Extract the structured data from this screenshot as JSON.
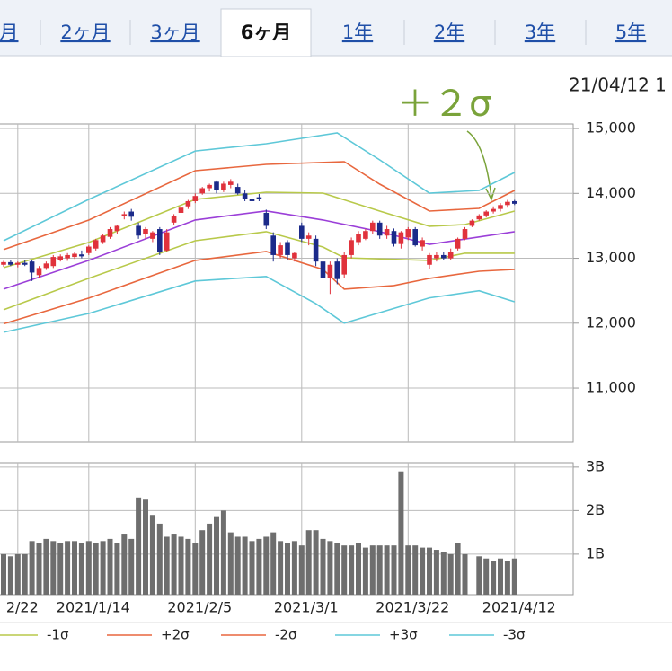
{
  "tabs": [
    {
      "label": "月",
      "selected": false
    },
    {
      "label": "2ヶ月",
      "selected": false
    },
    {
      "label": "3ヶ月",
      "selected": false
    },
    {
      "label": "6ヶ月",
      "selected": true
    },
    {
      "label": "1年",
      "selected": false
    },
    {
      "label": "2年",
      "selected": false
    },
    {
      "label": "3年",
      "selected": false
    },
    {
      "label": "5年",
      "selected": false
    }
  ],
  "chart_data": [
    {
      "type": "candlestick",
      "date_label": "21/04/12 1",
      "annotation": "＋２σ",
      "annotation_color": "#7aa33a",
      "up_color": "#e0323c",
      "down_color": "#1b2a8a",
      "categories": [
        null,
        null,
        "2/22",
        null,
        null,
        null,
        null,
        null,
        null,
        null,
        null,
        null,
        "2021/1/14",
        null,
        null,
        null,
        null,
        null,
        null,
        null,
        null,
        null,
        null,
        null,
        null,
        null,
        null,
        "2021/2/5",
        null,
        null,
        null,
        null,
        null,
        null,
        null,
        null,
        null,
        null,
        null,
        null,
        null,
        null,
        "2021/3/1",
        null,
        null,
        null,
        null,
        null,
        null,
        null,
        null,
        null,
        null,
        null,
        null,
        null,
        null,
        "2021/3/22",
        null,
        null,
        null,
        null,
        null,
        null,
        null,
        null,
        null,
        null,
        null,
        null,
        null,
        null,
        "2021/4/12"
      ],
      "ohlc": [
        [
          12900,
          12960,
          12870,
          12940
        ],
        [
          12940,
          12980,
          12880,
          12900
        ],
        [
          12900,
          12950,
          12860,
          12930
        ],
        [
          12930,
          12970,
          12880,
          12900
        ],
        [
          12950,
          12980,
          12650,
          12780
        ],
        [
          12740,
          12880,
          12700,
          12850
        ],
        [
          12850,
          12950,
          12820,
          12920
        ],
        [
          12880,
          13050,
          12850,
          13020
        ],
        [
          12980,
          13060,
          12950,
          13030
        ],
        [
          13000,
          13080,
          12960,
          13050
        ],
        [
          13020,
          13100,
          12990,
          13070
        ],
        [
          13060,
          13120,
          13000,
          13030
        ],
        [
          13080,
          13200,
          13050,
          13180
        ],
        [
          13150,
          13300,
          13120,
          13280
        ],
        [
          13250,
          13380,
          13220,
          13350
        ],
        [
          13330,
          13480,
          13300,
          13450
        ],
        [
          13420,
          13520,
          13380,
          13500
        ],
        [
          13650,
          13720,
          13600,
          13680
        ],
        [
          13720,
          13760,
          13580,
          13640
        ],
        [
          13500,
          13550,
          13300,
          13350
        ],
        [
          13380,
          13480,
          13300,
          13450
        ],
        [
          13300,
          13420,
          13250,
          13400
        ],
        [
          13450,
          13480,
          13050,
          13100
        ],
        [
          13120,
          13450,
          13100,
          13400
        ],
        [
          13550,
          13680,
          13520,
          13650
        ],
        [
          13700,
          13800,
          13650,
          13780
        ],
        [
          13800,
          13900,
          13760,
          13880
        ],
        [
          13880,
          14000,
          13850,
          13960
        ],
        [
          14000,
          14100,
          13980,
          14080
        ],
        [
          14080,
          14150,
          14030,
          14130
        ],
        [
          14180,
          14200,
          14000,
          14050
        ],
        [
          14050,
          14180,
          14020,
          14150
        ],
        [
          14130,
          14220,
          14080,
          14180
        ],
        [
          14100,
          14150,
          13980,
          14000
        ],
        [
          14000,
          14050,
          13880,
          13920
        ],
        [
          13920,
          13960,
          13850,
          13880
        ],
        [
          13940,
          13990,
          13880,
          13920
        ],
        [
          13700,
          13750,
          13450,
          13500
        ],
        [
          13350,
          13400,
          12950,
          13050
        ],
        [
          13050,
          13250,
          13000,
          13200
        ],
        [
          13250,
          13280,
          12980,
          13050
        ],
        [
          13000,
          13100,
          12950,
          13080
        ],
        [
          13500,
          13550,
          13250,
          13300
        ],
        [
          13300,
          13400,
          13200,
          13350
        ],
        [
          13300,
          13350,
          12880,
          12950
        ],
        [
          12950,
          13000,
          12650,
          12700
        ],
        [
          12700,
          12950,
          12450,
          12900
        ],
        [
          12950,
          13000,
          12600,
          12680
        ],
        [
          12750,
          13100,
          12700,
          13050
        ],
        [
          13050,
          13320,
          13000,
          13280
        ],
        [
          13250,
          13420,
          13200,
          13380
        ],
        [
          13300,
          13450,
          13280,
          13420
        ],
        [
          13420,
          13580,
          13380,
          13550
        ],
        [
          13550,
          13580,
          13300,
          13350
        ],
        [
          13350,
          13500,
          13300,
          13450
        ],
        [
          13420,
          13460,
          13180,
          13220
        ],
        [
          13220,
          13420,
          13150,
          13400
        ],
        [
          13320,
          13480,
          13280,
          13450
        ],
        [
          13450,
          13480,
          13180,
          13200
        ],
        [
          13180,
          13320,
          13120,
          13280
        ],
        [
          12900,
          13080,
          12830,
          13050
        ],
        [
          13000,
          13100,
          12950,
          13050
        ],
        [
          13050,
          13100,
          12980,
          13000
        ],
        [
          13000,
          13150,
          12980,
          13100
        ],
        [
          13150,
          13320,
          13120,
          13300
        ],
        [
          13300,
          13480,
          13280,
          13450
        ],
        [
          13500,
          13600,
          13480,
          13580
        ],
        [
          13600,
          13680,
          13580,
          13660
        ],
        [
          13660,
          13740,
          13630,
          13720
        ],
        [
          13720,
          13800,
          13690,
          13760
        ],
        [
          13760,
          13850,
          13720,
          13820
        ],
        [
          13820,
          13900,
          13780,
          13870
        ],
        [
          13880,
          13900,
          13820,
          13840
        ]
      ],
      "series": [
        {
          "color": "#9b3fd8",
          "x": [
            0,
            12,
            27,
            37,
            45,
            53,
            60,
            72
          ],
          "values": [
            12525,
            12967,
            13590,
            13730,
            13590,
            13410,
            13215,
            13410
          ]
        },
        {
          "color": "#b8c94a",
          "x": [
            0,
            12,
            27,
            37,
            45,
            53,
            60,
            65,
            72
          ],
          "values": [
            12856,
            13244,
            13907,
            14018,
            14004,
            13727,
            13493,
            13520,
            13727
          ]
        },
        {
          "name": "-1σ",
          "color": "#b8c94a",
          "x": [
            0,
            12,
            27,
            37,
            45,
            48,
            60,
            65,
            72
          ],
          "values": [
            12206,
            12690,
            13271,
            13410,
            13174,
            13008,
            12967,
            13078,
            13078
          ]
        },
        {
          "name": "+2σ",
          "color": "#e8673e",
          "x": [
            0,
            12,
            27,
            37,
            48,
            53,
            60,
            67,
            72
          ],
          "values": [
            13133,
            13589,
            14350,
            14447,
            14488,
            14142,
            13727,
            13769,
            14046
          ]
        },
        {
          "name": "-2σ",
          "color": "#e8673e",
          "x": [
            0,
            12,
            27,
            37,
            45,
            48,
            55,
            60,
            67,
            72
          ],
          "values": [
            11990,
            12386,
            12967,
            13105,
            12828,
            12524,
            12580,
            12690,
            12800,
            12828
          ]
        },
        {
          "name": "+3σ",
          "color": "#5ec8d8",
          "x": [
            0,
            12,
            27,
            37,
            47,
            53,
            60,
            67,
            72
          ],
          "values": [
            13271,
            13907,
            14654,
            14765,
            14931,
            14516,
            14004,
            14046,
            14322
          ]
        },
        {
          "name": "-3σ",
          "color": "#5ec8d8",
          "x": [
            0,
            12,
            27,
            37,
            44,
            48,
            60,
            67,
            72
          ],
          "values": [
            11860,
            12150,
            12650,
            12720,
            12300,
            12000,
            12390,
            12500,
            12330
          ]
        }
      ],
      "ylim": [
        10170,
        15070
      ],
      "yticks": [
        {
          "value": 11000,
          "label": "11,000"
        },
        {
          "value": 12000,
          "label": "12,000"
        },
        {
          "value": 13000,
          "label": "13,000"
        },
        {
          "value": 14000,
          "label": "14,000"
        },
        {
          "value": 15000,
          "label": "15,000"
        }
      ],
      "grid": true
    },
    {
      "type": "bar",
      "color": "#6e6e6e",
      "values": [
        1.0,
        0.95,
        1.0,
        1.0,
        1.3,
        1.25,
        1.35,
        1.3,
        1.25,
        1.3,
        1.3,
        1.25,
        1.3,
        1.25,
        1.3,
        1.35,
        1.25,
        1.45,
        1.35,
        2.3,
        2.25,
        1.9,
        1.7,
        1.4,
        1.45,
        1.4,
        1.35,
        1.25,
        1.55,
        1.7,
        1.85,
        2.0,
        1.5,
        1.4,
        1.4,
        1.3,
        1.35,
        1.4,
        1.5,
        1.3,
        1.25,
        1.3,
        1.2,
        1.55,
        1.55,
        1.35,
        1.3,
        1.25,
        1.2,
        1.2,
        1.25,
        1.15,
        1.2,
        1.2,
        1.2,
        1.2,
        2.9,
        1.2,
        1.2,
        1.15,
        1.15,
        1.1,
        1.05,
        1.0,
        1.25,
        1.0,
        null,
        0.95,
        0.9,
        0.85,
        0.9,
        0.85,
        0.9
      ],
      "ylim": [
        0.07,
        3.1
      ],
      "yticks": [
        {
          "value": 1,
          "label": "1B"
        },
        {
          "value": 2,
          "label": "2B"
        },
        {
          "value": 3,
          "label": "3B"
        }
      ],
      "grid": true
    }
  ]
}
